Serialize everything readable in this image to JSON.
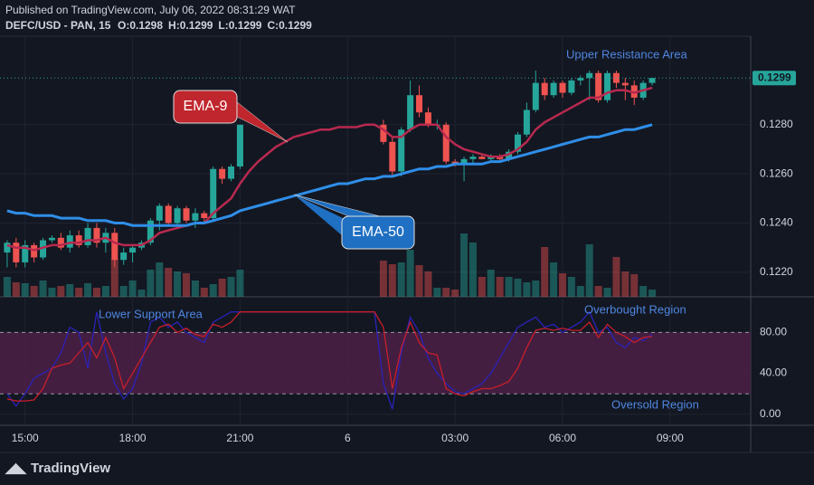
{
  "header": {
    "published": "Published on TradingView.com, July 06, 2022 08:31:29 WAT",
    "symbol": "DEFC/USD - PAN, 15",
    "ohlc": [
      "O:0.1298",
      "H:0.1299",
      "L:0.1299",
      "C:0.1299"
    ]
  },
  "footer": "TradingView",
  "chart_data": [
    {
      "type": "candlestick",
      "up_color": "#26a69a",
      "down_color": "#ef5350",
      "xlim": [
        -0.8,
        83
      ],
      "xticks": [
        {
          "value": 2,
          "label": "15:00"
        },
        {
          "value": 14,
          "label": "18:00"
        },
        {
          "value": 26,
          "label": "21:00"
        },
        {
          "value": 38,
          "label": "6"
        },
        {
          "value": 50,
          "label": "03:00"
        },
        {
          "value": 62,
          "label": "06:00"
        },
        {
          "value": 74,
          "label": "09:00"
        }
      ],
      "ylim": [
        0.121,
        0.1316
      ],
      "yticks": [
        {
          "value": 0.122,
          "label": "0.1220"
        },
        {
          "value": 0.124,
          "label": "0.1240"
        },
        {
          "value": 0.126,
          "label": "0.1260"
        },
        {
          "value": 0.128,
          "label": "0.1280"
        }
      ],
      "grid": true,
      "last_price": 0.1299,
      "open": [
        0.1228,
        0.1232,
        0.1224,
        0.1231,
        0.1226,
        0.1233,
        0.1234,
        0.123,
        0.1235,
        0.1231,
        0.1238,
        0.1232,
        0.1236,
        0.1225,
        0.1228,
        0.123,
        0.1232,
        0.1241,
        0.1247,
        0.124,
        0.1246,
        0.1241,
        0.1244,
        0.1242,
        0.1262,
        0.1258,
        0.1263,
        null,
        null,
        null,
        null,
        null,
        null,
        null,
        null,
        null,
        null,
        null,
        null,
        null,
        null,
        null,
        0.128,
        0.1273,
        0.1261,
        0.1278,
        0.1292,
        0.1285,
        0.128,
        0.128,
        0.1265,
        0.1264,
        0.1266,
        0.1267,
        0.1266,
        0.1267,
        0.1266,
        0.1269,
        0.1276,
        0.1286,
        0.1297,
        0.1292,
        0.1297,
        0.1293,
        0.1298,
        0.1299,
        0.1301,
        0.129,
        0.1301,
        0.1297,
        0.1296,
        0.1291,
        0.1297
      ],
      "high": [
        0.1233,
        0.1234,
        0.1233,
        0.1232,
        0.1234,
        0.1235,
        0.1236,
        0.1237,
        0.1237,
        0.124,
        0.124,
        0.1238,
        0.1238,
        0.123,
        0.1231,
        0.1233,
        0.1242,
        0.1248,
        0.1248,
        0.1247,
        0.1247,
        0.1246,
        0.1245,
        0.1263,
        0.1263,
        0.1264,
        0.128,
        null,
        null,
        null,
        null,
        null,
        null,
        null,
        null,
        null,
        null,
        null,
        null,
        null,
        null,
        null,
        0.1282,
        0.1275,
        0.1279,
        0.1298,
        0.1296,
        0.1287,
        0.1282,
        0.1281,
        0.1266,
        0.1267,
        0.1268,
        0.1268,
        0.1268,
        0.1268,
        0.127,
        0.1277,
        0.1289,
        0.1302,
        0.1299,
        0.1298,
        0.1298,
        0.1299,
        0.13,
        0.1302,
        0.1302,
        0.1302,
        0.1302,
        0.1299,
        0.1298,
        0.1298,
        0.1299
      ],
      "low": [
        0.1222,
        0.1222,
        0.1222,
        0.1224,
        0.1225,
        0.1232,
        0.1229,
        0.1228,
        0.123,
        0.123,
        0.123,
        0.1228,
        0.1222,
        0.1223,
        0.1224,
        0.1229,
        0.1231,
        0.1237,
        0.1239,
        0.1238,
        0.124,
        0.1238,
        0.124,
        0.1241,
        0.1256,
        0.1257,
        0.1262,
        null,
        null,
        null,
        null,
        null,
        null,
        null,
        null,
        null,
        null,
        null,
        null,
        null,
        null,
        null,
        0.1272,
        0.1259,
        0.1259,
        0.1277,
        0.1283,
        0.1279,
        0.1278,
        0.1264,
        0.1263,
        0.1257,
        0.1264,
        0.1266,
        0.1265,
        0.1265,
        0.1265,
        0.1268,
        0.1275,
        0.1285,
        0.129,
        0.1291,
        0.1291,
        0.1292,
        0.1296,
        0.129,
        0.1289,
        0.1289,
        0.1295,
        0.129,
        0.1288,
        0.129,
        0.1296
      ],
      "close": [
        0.1232,
        0.1224,
        0.1231,
        0.1226,
        0.1233,
        0.1234,
        0.123,
        0.1235,
        0.1231,
        0.1238,
        0.1232,
        0.1236,
        0.1225,
        0.1228,
        0.123,
        0.1232,
        0.1241,
        0.1247,
        0.124,
        0.1246,
        0.1241,
        0.1244,
        0.1242,
        0.1262,
        0.1258,
        0.1263,
        0.128,
        null,
        null,
        null,
        null,
        null,
        null,
        null,
        null,
        null,
        null,
        null,
        null,
        null,
        null,
        null,
        0.1273,
        0.1261,
        0.1278,
        0.1292,
        0.1285,
        0.128,
        0.128,
        0.1265,
        0.1264,
        0.1266,
        0.1267,
        0.1266,
        0.1267,
        0.1266,
        0.1269,
        0.1276,
        0.1286,
        0.1297,
        0.1292,
        0.1297,
        0.1293,
        0.1298,
        0.1299,
        0.1301,
        0.129,
        0.1301,
        0.1297,
        0.1296,
        0.1291,
        0.1297,
        0.1299
      ],
      "volume": [
        22,
        16,
        15,
        12,
        18,
        10,
        12,
        14,
        10,
        15,
        10,
        12,
        42,
        12,
        18,
        8,
        30,
        38,
        32,
        28,
        26,
        18,
        10,
        14,
        20,
        22,
        30,
        null,
        null,
        null,
        null,
        null,
        null,
        null,
        null,
        null,
        null,
        null,
        null,
        null,
        null,
        null,
        40,
        36,
        38,
        52,
        35,
        28,
        10,
        10,
        8,
        70,
        60,
        22,
        30,
        22,
        22,
        20,
        16,
        18,
        55,
        38,
        26,
        22,
        12,
        58,
        12,
        10,
        44,
        28,
        25,
        12,
        8
      ],
      "series": [
        {
          "name": "EMA-9",
          "color": "#b8294f",
          "box_color": "#c0262d",
          "values": [
            0.1231,
            0.123,
            0.123,
            0.1229,
            0.123,
            0.1231,
            0.1231,
            0.1232,
            0.1232,
            0.1233,
            0.1233,
            0.1234,
            0.1232,
            0.1231,
            0.1231,
            0.1231,
            0.1233,
            0.1236,
            0.1237,
            0.1238,
            0.1239,
            0.124,
            0.124,
            0.1244,
            0.1247,
            0.125,
            0.1256,
            0.1261,
            0.1265,
            0.1268,
            0.1271,
            0.1273,
            0.1275,
            0.1276,
            0.1277,
            0.1278,
            0.1278,
            0.1279,
            0.1279,
            0.1279,
            0.128,
            0.128,
            0.1278,
            0.1275,
            0.1275,
            0.1278,
            0.128,
            0.128,
            0.128,
            0.1275,
            0.1272,
            0.127,
            0.1269,
            0.1268,
            0.1267,
            0.1267,
            0.1268,
            0.127,
            0.1273,
            0.1278,
            0.1281,
            0.1283,
            0.1285,
            0.1287,
            0.1289,
            0.1291,
            0.1291,
            0.1293,
            0.1294,
            0.1294,
            0.1293,
            0.1294,
            0.1295
          ]
        },
        {
          "name": "EMA-50",
          "color": "#2f8ee8",
          "box_color": "#1f6fc2",
          "values": [
            0.1245,
            0.1244,
            0.1244,
            0.1243,
            0.1243,
            0.1243,
            0.1242,
            0.1242,
            0.1242,
            0.1241,
            0.1241,
            0.1241,
            0.124,
            0.124,
            0.1239,
            0.1239,
            0.1239,
            0.1239,
            0.1239,
            0.1239,
            0.1239,
            0.124,
            0.124,
            0.1241,
            0.1242,
            0.1243,
            0.1245,
            0.1246,
            0.1247,
            0.1248,
            0.1249,
            0.125,
            0.1251,
            0.1252,
            0.1253,
            0.1254,
            0.1255,
            0.1256,
            0.1256,
            0.1257,
            0.1258,
            0.1258,
            0.1259,
            0.1259,
            0.126,
            0.1261,
            0.1262,
            0.1262,
            0.1263,
            0.1263,
            0.1264,
            0.1264,
            0.1264,
            0.1264,
            0.1265,
            0.1265,
            0.1266,
            0.1267,
            0.1268,
            0.1269,
            0.127,
            0.1271,
            0.1272,
            0.1273,
            0.1274,
            0.1275,
            0.1275,
            0.1276,
            0.1277,
            0.1278,
            0.1278,
            0.1279,
            0.128
          ]
        }
      ],
      "annotations": [
        "Upper Resistance Area"
      ]
    },
    {
      "type": "line",
      "ylim": [
        -9,
        113
      ],
      "yticks": [
        {
          "value": 0,
          "label": "0.00"
        },
        {
          "value": 40,
          "label": "40.00"
        },
        {
          "value": 80,
          "label": "80.00"
        }
      ],
      "bands": [
        20,
        80
      ],
      "band_color": "#4a1f45",
      "series": [
        {
          "color": "#c81e2a",
          "values": [
            15,
            13,
            13,
            14,
            25,
            45,
            48,
            50,
            60,
            70,
            55,
            75,
            55,
            25,
            40,
            55,
            70,
            85,
            88,
            80,
            84,
            78,
            76,
            88,
            85,
            90,
            100,
            100,
            100,
            100,
            100,
            100,
            100,
            100,
            100,
            100,
            100,
            100,
            100,
            100,
            100,
            100,
            85,
            25,
            65,
            90,
            70,
            60,
            58,
            25,
            20,
            18,
            22,
            25,
            25,
            28,
            32,
            45,
            65,
            82,
            84,
            82,
            84,
            82,
            82,
            90,
            75,
            88,
            80,
            76,
            70,
            75,
            76
          ]
        },
        {
          "color": "#2a22b8",
          "values": [
            20,
            8,
            20,
            35,
            40,
            45,
            60,
            85,
            80,
            45,
            100,
            60,
            30,
            15,
            25,
            50,
            90,
            95,
            85,
            90,
            80,
            75,
            70,
            90,
            95,
            100,
            100,
            100,
            100,
            100,
            100,
            100,
            100,
            100,
            100,
            100,
            100,
            100,
            100,
            100,
            100,
            100,
            30,
            5,
            60,
            95,
            80,
            55,
            40,
            30,
            22,
            20,
            25,
            30,
            40,
            55,
            70,
            85,
            90,
            95,
            85,
            88,
            80,
            85,
            90,
            100,
            80,
            85,
            70,
            65,
            75,
            72,
            78
          ]
        }
      ],
      "annotations": [
        "Lower Support Area",
        "Overbought Region",
        "Oversold Region"
      ]
    }
  ]
}
